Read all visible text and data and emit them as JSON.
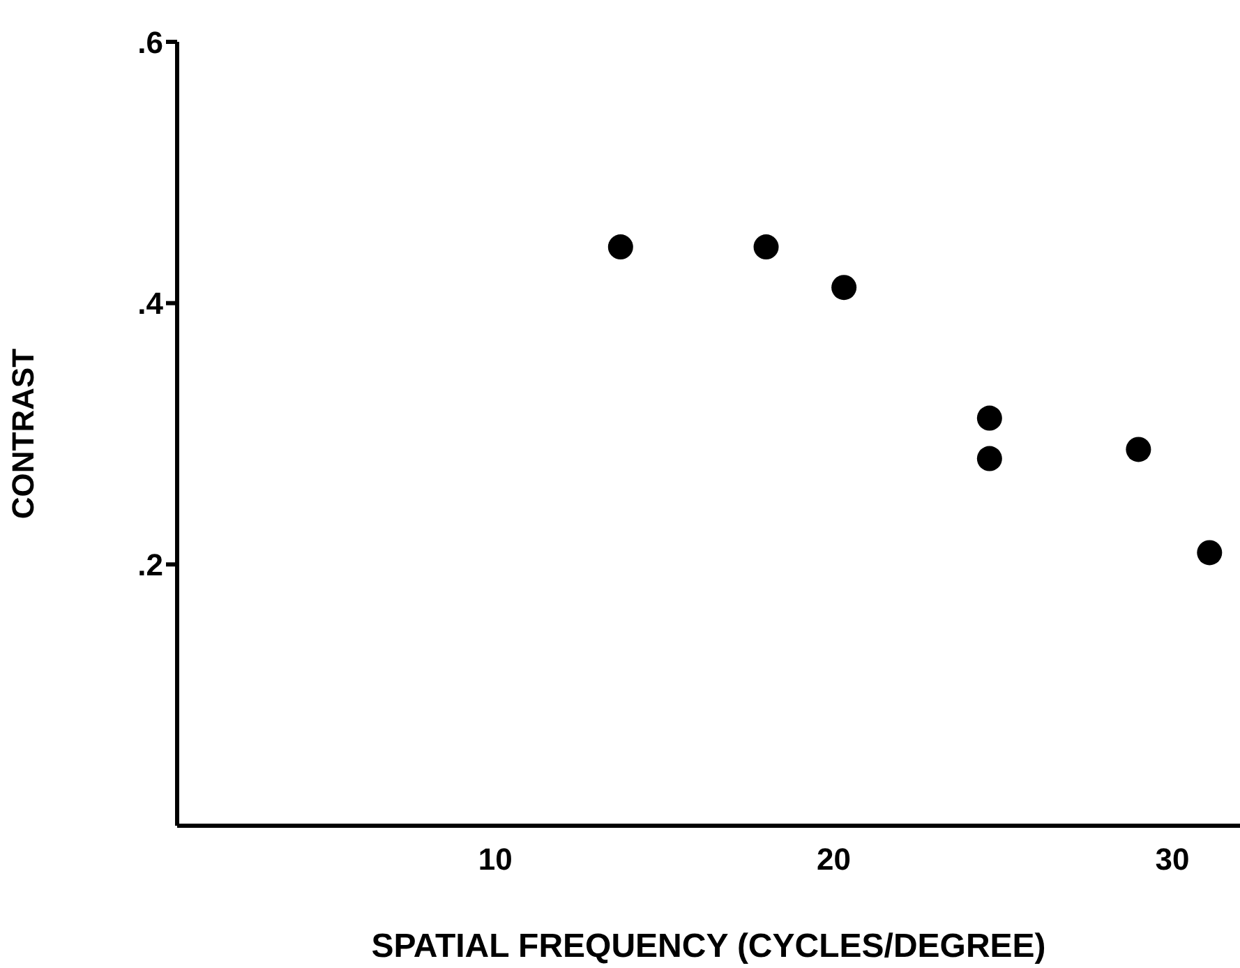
{
  "chart_data": {
    "type": "scatter",
    "xlabel": "SPATIAL FREQUENCY (CYCLES/DEGREE)",
    "ylabel": "CONTRAST",
    "x": [
      13.7,
      18.0,
      20.3,
      24.6,
      24.6,
      29.0,
      31.1
    ],
    "series": [
      {
        "color": "#000000",
        "values": [
          0.443,
          0.443,
          0.412,
          0.312,
          0.281,
          0.288,
          0.209
        ]
      }
    ],
    "xlim": [
      0.6,
      32
    ],
    "xticks": [
      10,
      20,
      30
    ],
    "ylim": [
      0,
      0.6
    ],
    "yticks": [
      {
        "value": 0.2,
        "label": ".2"
      },
      {
        "value": 0.4,
        "label": ".4"
      },
      {
        "value": 0.6,
        "label": ".6"
      }
    ],
    "marker": "circle",
    "grid": false,
    "legend": false
  }
}
